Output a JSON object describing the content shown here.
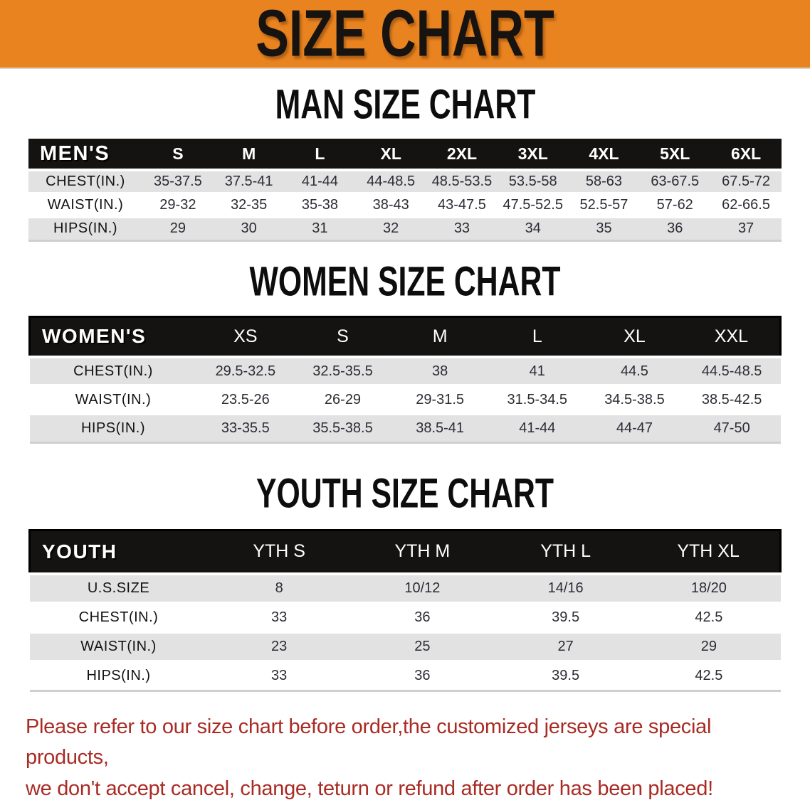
{
  "banner": {
    "title": "SIZE CHART"
  },
  "colors": {
    "banner_orange": "#E8831F",
    "table_header_black": "#151311",
    "row_band_gray": "#E2E2E3",
    "disclaimer_red": "#A92B24"
  },
  "chart_data": [
    {
      "type": "table",
      "id": "men",
      "title": "MAN SIZE CHART",
      "header_label": "MEN'S",
      "columns": [
        "S",
        "M",
        "L",
        "XL",
        "2XL",
        "3XL",
        "4XL",
        "5XL",
        "6XL"
      ],
      "rows": [
        {
          "label": "CHEST(IN.)",
          "values": [
            "35-37.5",
            "37.5-41",
            "41-44",
            "44-48.5",
            "48.5-53.5",
            "53.5-58",
            "58-63",
            "63-67.5",
            "67.5-72"
          ]
        },
        {
          "label": "WAIST(IN.)",
          "values": [
            "29-32",
            "32-35",
            "35-38",
            "38-43",
            "43-47.5",
            "47.5-52.5",
            "52.5-57",
            "57-62",
            "62-66.5"
          ]
        },
        {
          "label": "HIPS(IN.)",
          "values": [
            "29",
            "30",
            "31",
            "32",
            "33",
            "34",
            "35",
            "36",
            "37"
          ]
        }
      ]
    },
    {
      "type": "table",
      "id": "women",
      "title": "WOMEN SIZE CHART",
      "header_label": "WOMEN'S",
      "columns": [
        "XS",
        "S",
        "M",
        "L",
        "XL",
        "XXL"
      ],
      "rows": [
        {
          "label": "CHEST(IN.)",
          "values": [
            "29.5-32.5",
            "32.5-35.5",
            "38",
            "41",
            "44.5",
            "44.5-48.5"
          ]
        },
        {
          "label": "WAIST(IN.)",
          "values": [
            "23.5-26",
            "26-29",
            "29-31.5",
            "31.5-34.5",
            "34.5-38.5",
            "38.5-42.5"
          ]
        },
        {
          "label": "HIPS(IN.)",
          "values": [
            "33-35.5",
            "35.5-38.5",
            "38.5-41",
            "41-44",
            "44-47",
            "47-50"
          ]
        }
      ]
    },
    {
      "type": "table",
      "id": "youth",
      "title": "YOUTH SIZE CHART",
      "header_label": "YOUTH",
      "columns": [
        "YTH S",
        "YTH M",
        "YTH L",
        "YTH XL"
      ],
      "rows": [
        {
          "label": "U.S.SIZE",
          "values": [
            "8",
            "10/12",
            "14/16",
            "18/20"
          ]
        },
        {
          "label": "CHEST(IN.)",
          "values": [
            "33",
            "36",
            "39.5",
            "42.5"
          ]
        },
        {
          "label": "WAIST(IN.)",
          "values": [
            "23",
            "25",
            "27",
            "29"
          ]
        },
        {
          "label": "HIPS(IN.)",
          "values": [
            "33",
            "36",
            "39.5",
            "42.5"
          ]
        }
      ]
    }
  ],
  "disclaimer": {
    "line1": "Please refer to our size chart before order,the customized jerseys are special products,",
    "line2": "we don't accept cancel, change, teturn or refund after order has been placed!"
  }
}
